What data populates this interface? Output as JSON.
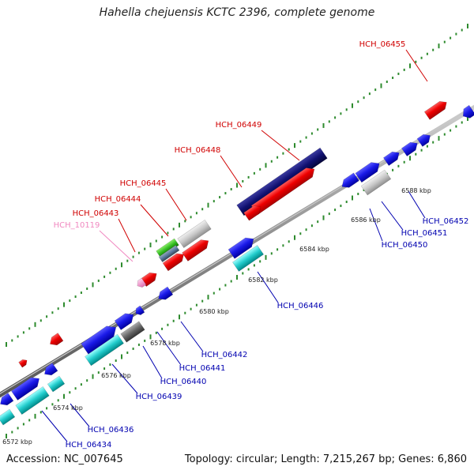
{
  "title": "Hahella chejuensis KCTC 2396, complete genome",
  "footer": {
    "accession": "Accession: NC_007645",
    "summary": "Topology: circular; Length: 7,215,267 bp; Genes: 6,860"
  },
  "colors": {
    "forward_label": "#d00000",
    "reverse_label": "#0000b0",
    "other_label": "#f088c0",
    "backbone": "#888888",
    "tick": "#2e8b2e"
  },
  "kbp_marks": [
    "6572 kbp",
    "6574 kbp",
    "6576 kbp",
    "6578 kbp",
    "6580 kbp",
    "6582 kbp",
    "6584 kbp",
    "6586 kbp",
    "6588 kbp"
  ],
  "gene_labels": {
    "top": [
      "HCH_06455",
      "HCH_06449",
      "HCH_06448",
      "HCH_06445",
      "HCH_06444",
      "HCH_06443",
      "HCH_10119"
    ],
    "bottom": [
      "HCH_06452",
      "HCH_06451",
      "HCH_06450",
      "HCH_06446",
      "HCH_06442",
      "HCH_06441",
      "HCH_06440",
      "HCH_06439",
      "HCH_06436",
      "HCH_06434"
    ]
  }
}
